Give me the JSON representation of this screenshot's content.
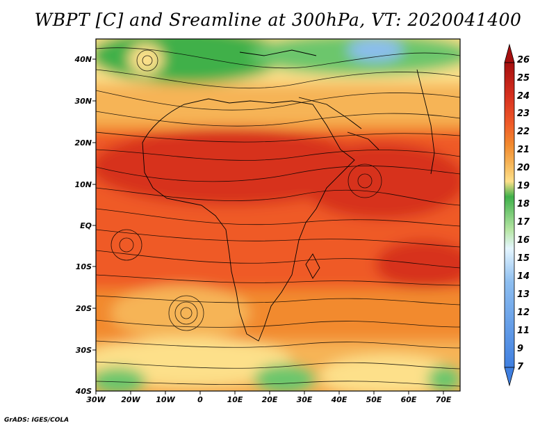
{
  "title": "WBPT [C] and Sreamline at 300hPa, VT: 2020041400",
  "credit": "GrADS: IGES/COLA",
  "lat_labels": [
    "40N",
    "30N",
    "20N",
    "10N",
    "EQ",
    "10S",
    "20S",
    "30S",
    "40S"
  ],
  "lon_labels": [
    "30W",
    "20W",
    "10W",
    "0",
    "10E",
    "20E",
    "30E",
    "40E",
    "50E",
    "60E",
    "70E"
  ],
  "colorbar_levels": [
    "26",
    "25",
    "24",
    "23",
    "22",
    "21",
    "20",
    "19",
    "18",
    "17",
    "16",
    "15",
    "14",
    "13",
    "12",
    "11",
    "9",
    "7"
  ],
  "colors": {
    "dark_red": "#a50f0f",
    "red": "#d7301f",
    "orange_red": "#ef5a28",
    "orange": "#f28a2e",
    "light_orange": "#f6b457",
    "yellow": "#fde08a",
    "dark_green": "#3fb04a",
    "green": "#6cc66c",
    "light_green": "#b7e6a5",
    "blue": "#3f7fe0"
  }
}
